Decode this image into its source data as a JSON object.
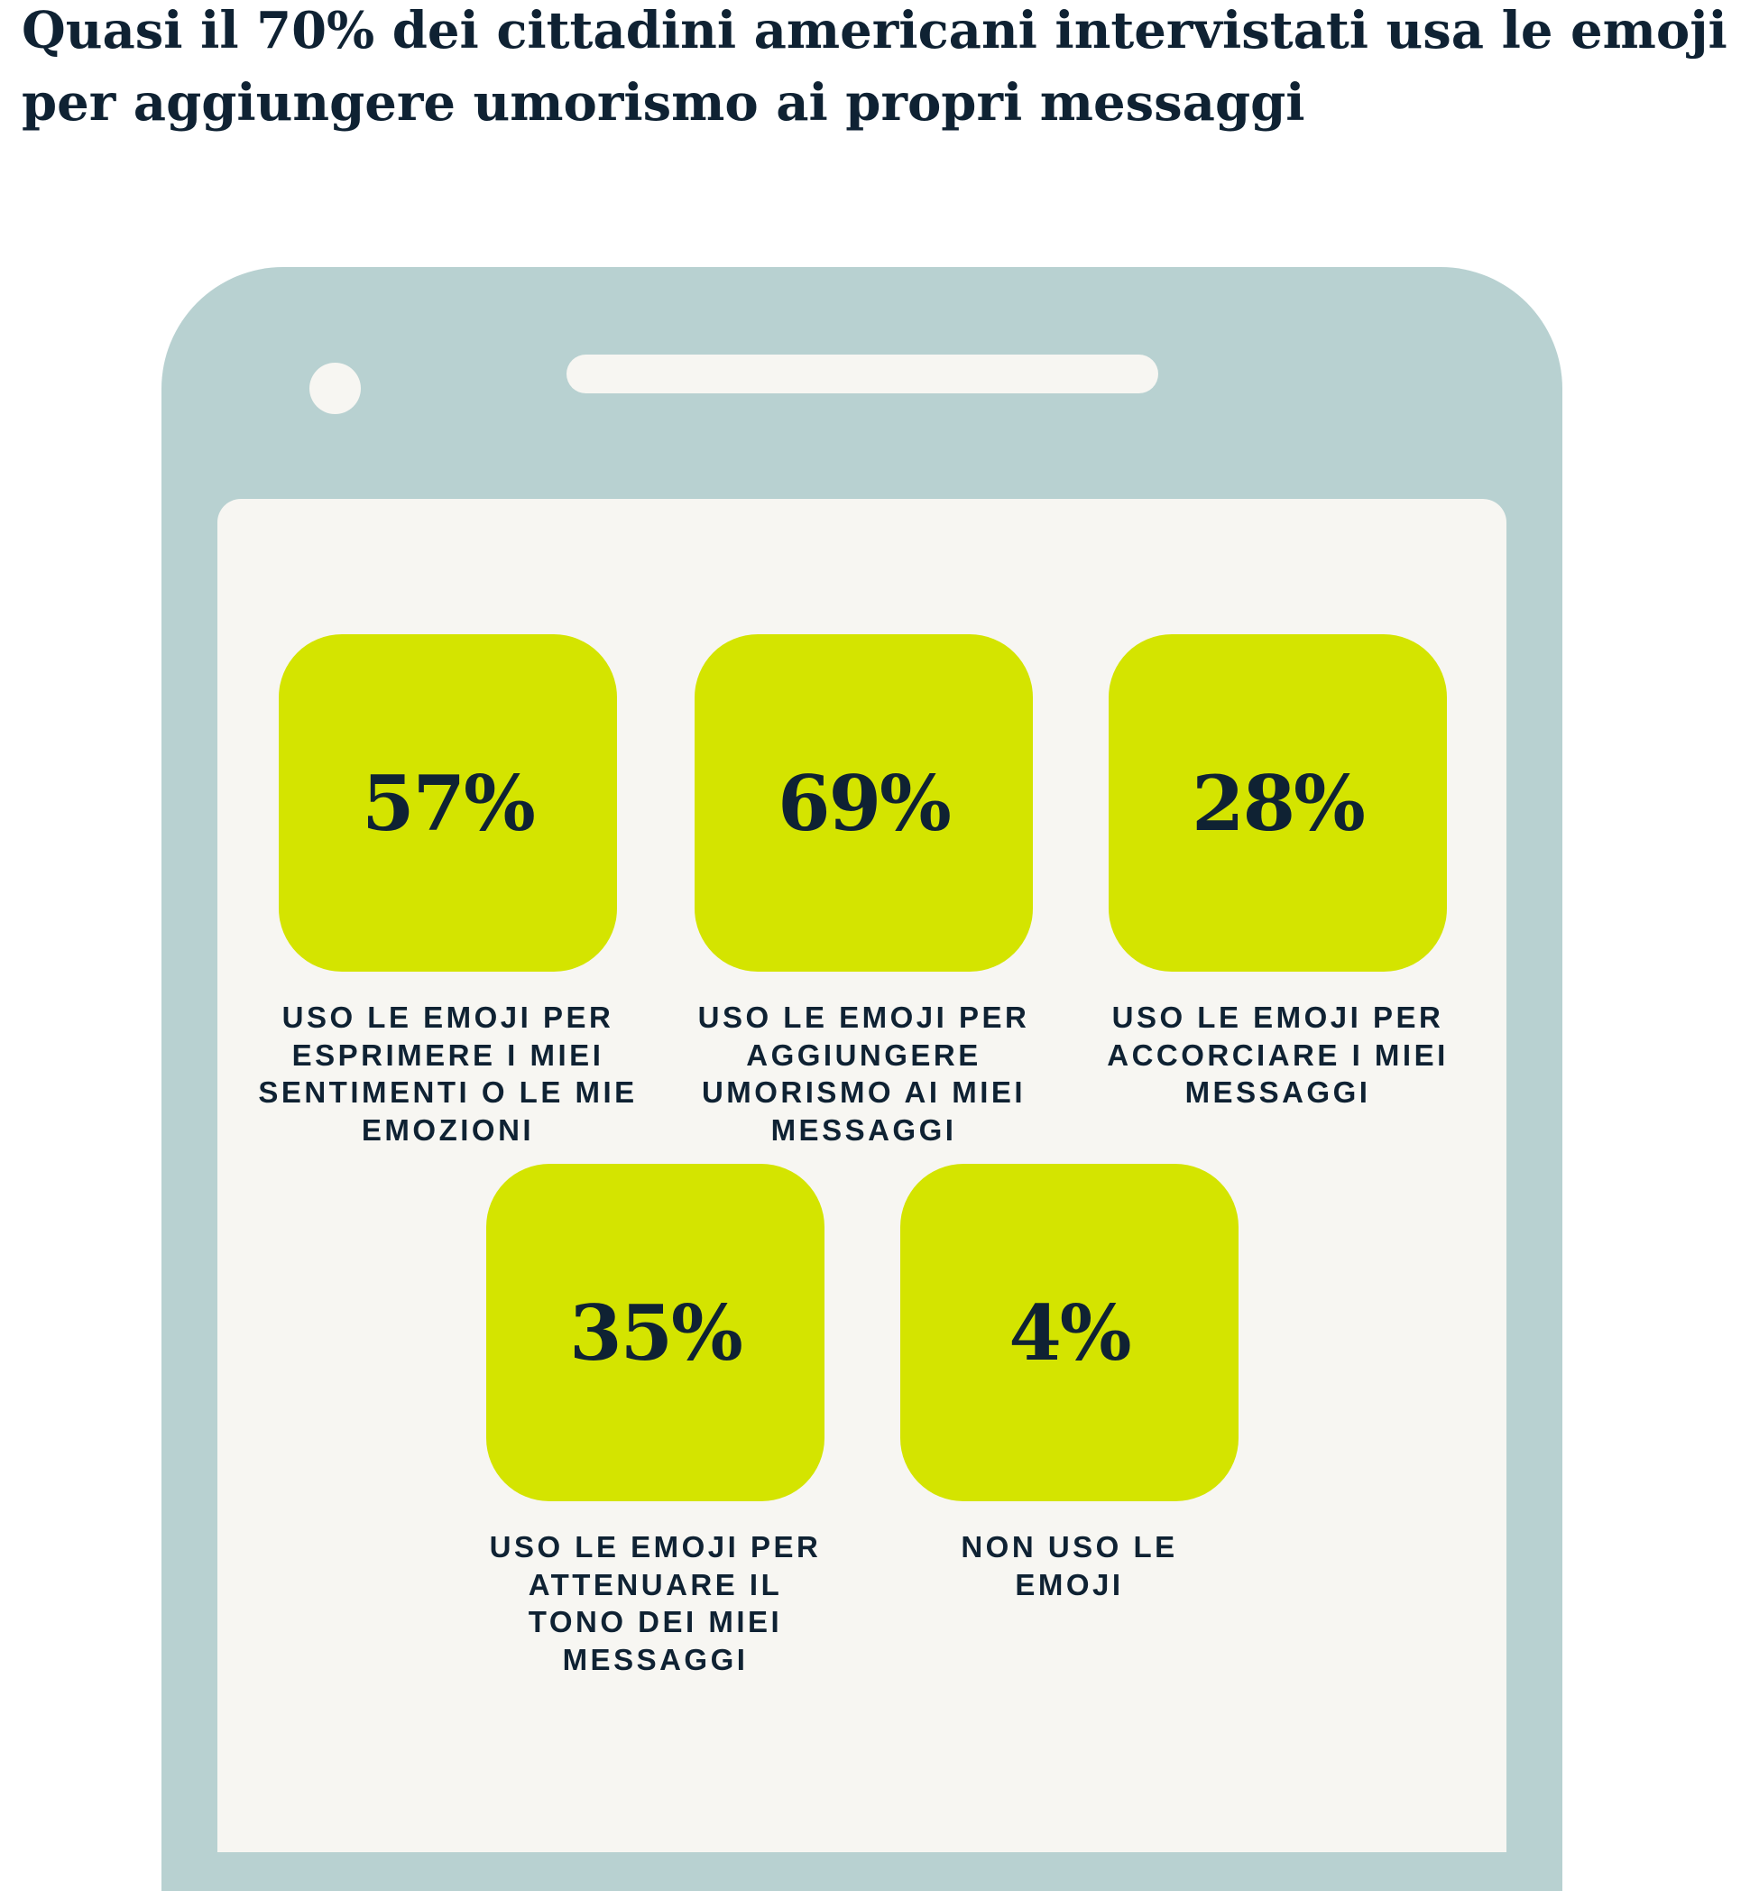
{
  "title": "Quasi il 70% dei cittadini americani intervistati usa le emoji per aggiungere umorismo ai propri messaggi",
  "colors": {
    "background": "#ffffff",
    "phone": "#b8d1d1",
    "screen": "#f7f6f2",
    "box": "#d4e400",
    "text": "#0f2233"
  },
  "stats": [
    {
      "value": "57%",
      "label": "Uso le emoji per esprimere i miei sentimenti o le mie emozioni"
    },
    {
      "value": "69%",
      "label": "Uso le emoji per aggiungere umorismo ai miei messaggi"
    },
    {
      "value": "28%",
      "label": "Uso le emoji per accorciare i miei messaggi"
    },
    {
      "value": "35%",
      "label": "Uso le emoji per attenuare il tono dei miei messaggi"
    },
    {
      "value": "4%",
      "label": "Non uso le emoji"
    }
  ]
}
